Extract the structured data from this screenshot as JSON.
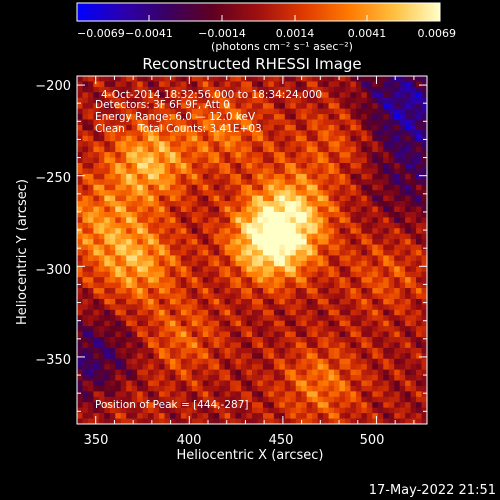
{
  "colorbar": {
    "tick_labels": [
      "−0.0069",
      "−0.0041",
      "−0.0014",
      "0.0014",
      "0.0041",
      "0.0069"
    ],
    "units_label": "(photons cm⁻² s⁻¹ asec⁻²)",
    "stops": [
      "#0000ff",
      "#2a00b0",
      "#3a0060",
      "#600020",
      "#a01010",
      "#e03a00",
      "#ff7a00",
      "#ffc040",
      "#ffffc8"
    ]
  },
  "plot": {
    "title": "Reconstructed RHESSI Image",
    "xlabel": "Heliocentric X (arcsec)",
    "ylabel": "Heliocentric Y (arcsec)",
    "x_ticks": [
      "350",
      "400",
      "450",
      "500"
    ],
    "y_ticks": [
      "−200",
      "−250",
      "−300",
      "−350"
    ],
    "xlim": [
      340,
      527
    ],
    "ylim": [
      -387,
      -195
    ]
  },
  "annotations": {
    "time_range": "4-Oct-2014 18:32:56.000 to 18:34:24.000",
    "detectors": "Detectors: 3F 6F 9F, Att 0",
    "energy_range": "Energy Range: 6.0 — 12.0 keV",
    "clean_line": "Clean    Total Counts: 3.41E+03",
    "peak_position": "Position of Peak = [444,-287]"
  },
  "footer": {
    "timestamp": "17-May-2022 21:51"
  },
  "chart_data": {
    "type": "heatmap",
    "title": "Reconstructed RHESSI Image",
    "xlabel": "Heliocentric X (arcsec)",
    "ylabel": "Heliocentric Y (arcsec)",
    "xlim": [
      340,
      527
    ],
    "ylim": [
      -387,
      -195
    ],
    "value_range": [
      -0.0069,
      0.0069
    ],
    "peak": {
      "x": 444,
      "y": -287
    },
    "sources": [
      {
        "x": 444,
        "y": -287,
        "value": 0.0069
      },
      {
        "x": 378,
        "y": -243,
        "value": 0.0048
      },
      {
        "x": 372,
        "y": -298,
        "value": 0.0042
      },
      {
        "x": 455,
        "y": -268,
        "value": 0.004
      },
      {
        "x": 350,
        "y": -275,
        "value": 0.003
      },
      {
        "x": 420,
        "y": -225,
        "value": 0.0028
      },
      {
        "x": 470,
        "y": -365,
        "value": 0.003
      },
      {
        "x": 395,
        "y": -340,
        "value": 0.0025
      },
      {
        "x": 505,
        "y": -305,
        "value": 0.002
      },
      {
        "x": 480,
        "y": -230,
        "value": 0.0022
      },
      {
        "x": 360,
        "y": -370,
        "value": 0.0018
      }
    ],
    "negative_regions": [
      {
        "x": 515,
        "y": -210,
        "value": -0.0045
      },
      {
        "x": 350,
        "y": -355,
        "value": -0.004
      },
      {
        "x": 520,
        "y": -250,
        "value": -0.0025
      }
    ]
  }
}
